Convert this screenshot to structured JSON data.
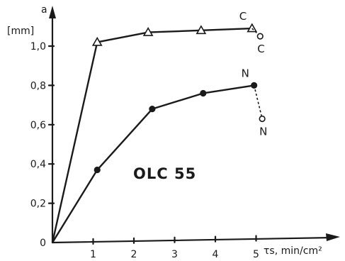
{
  "chart_data": {
    "type": "line",
    "title": "",
    "xlabel": "τs, min/cm²",
    "ylabel_symbol": "a",
    "ylabel_unit": "[mm]",
    "xlim": [
      0,
      6.3
    ],
    "ylim": [
      0,
      1.2
    ],
    "xticks": [
      1,
      2,
      3,
      4,
      5
    ],
    "yticks": [
      0,
      0.2,
      0.4,
      0.6,
      0.8,
      1.0
    ],
    "ytick_labels": [
      "0",
      "0,2",
      "0,4",
      "0,6",
      "0,8",
      "1,0"
    ],
    "xtick_labels": [
      "1",
      "2",
      "3",
      "4",
      "5"
    ],
    "grid": false,
    "annotation": "OLC 55",
    "series": [
      {
        "name": "C",
        "marker": "triangle",
        "x": [
          0,
          1.1,
          2.35,
          3.65,
          4.9
        ],
        "y": [
          0,
          1.02,
          1.07,
          1.08,
          1.09
        ],
        "extension": {
          "x": [
            4.9,
            5.1
          ],
          "y": [
            1.09,
            1.05
          ],
          "marker": "circle-open",
          "end_label": "C"
        }
      },
      {
        "name": "N",
        "marker": "circle-filled",
        "x": [
          0,
          1.1,
          2.45,
          3.7,
          4.95
        ],
        "y": [
          0,
          0.37,
          0.68,
          0.76,
          0.8
        ],
        "extension": {
          "x": [
            4.95,
            5.15
          ],
          "y": [
            0.8,
            0.63
          ],
          "marker": "circle-open",
          "end_label": "N"
        }
      }
    ]
  }
}
